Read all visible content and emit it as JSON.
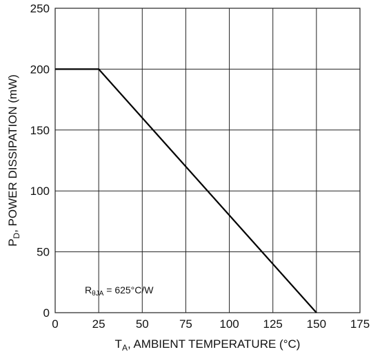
{
  "chart_data": {
    "type": "line",
    "xlabel_main": "T",
    "xlabel_sub": "A",
    "xlabel_rest": ", AMBIENT TEMPERATURE (°C)",
    "ylabel_main": "P",
    "ylabel_sub": "D",
    "ylabel_rest": ", POWER DISSIPATION (mW)",
    "xlim": [
      0,
      175
    ],
    "ylim": [
      0,
      250
    ],
    "x_ticks": [
      0,
      25,
      50,
      75,
      100,
      125,
      150,
      175
    ],
    "y_ticks": [
      0,
      50,
      100,
      150,
      200,
      250
    ],
    "grid": true,
    "series": [
      {
        "x": [
          0,
          25,
          150
        ],
        "y": [
          200,
          200,
          0
        ]
      }
    ],
    "annotation": {
      "main": "R",
      "sub": "θJA",
      "rest": " = 625°C/W",
      "x": 12,
      "y": 12
    }
  }
}
